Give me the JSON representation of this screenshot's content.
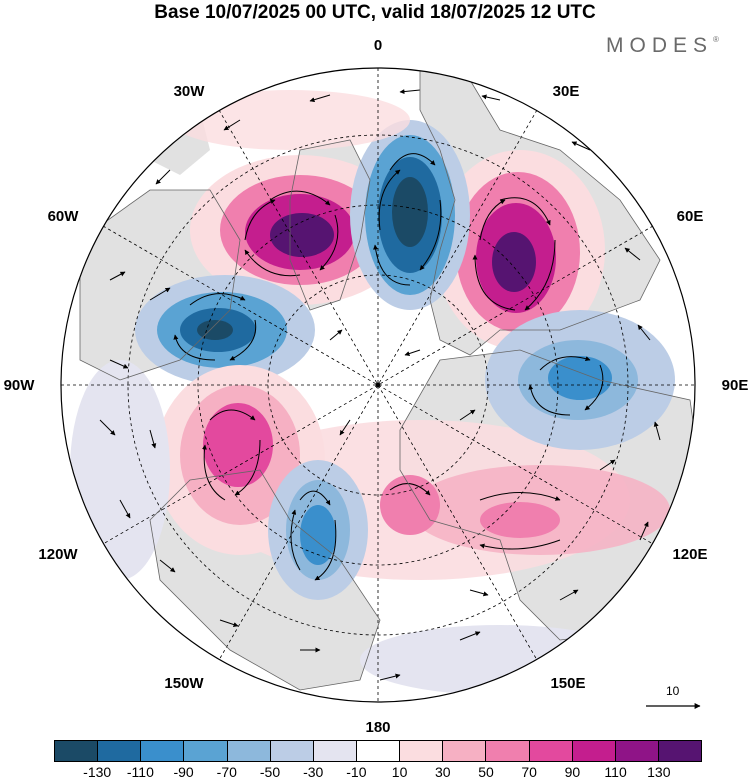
{
  "title": "Base 10/07/2025 00 UTC, valid 18/07/2025 12 UTC",
  "brand": {
    "text": "MODES",
    "mark": "®"
  },
  "longitude_labels": [
    "0",
    "30E",
    "60E",
    "90E",
    "120E",
    "150E",
    "180",
    "150W",
    "120W",
    "90W",
    "60W",
    "30W"
  ],
  "reference_vector": {
    "label": "10",
    "icon": "arrow-right-icon"
  },
  "colorbar": {
    "colors": [
      "#1b4a66",
      "#1f6aa0",
      "#3a8fcc",
      "#5aa3d3",
      "#8db8dc",
      "#bccde6",
      "#e4e4f0",
      "#ffffff",
      "#fbdde0",
      "#f6b0c3",
      "#f07fae",
      "#e3499e",
      "#c41e8e",
      "#8f1487",
      "#561471"
    ],
    "tick_labels": [
      "-130",
      "-110",
      "-90",
      "-70",
      "-50",
      "-30",
      "-10",
      "10",
      "30",
      "50",
      "70",
      "90",
      "110",
      "130"
    ]
  }
}
